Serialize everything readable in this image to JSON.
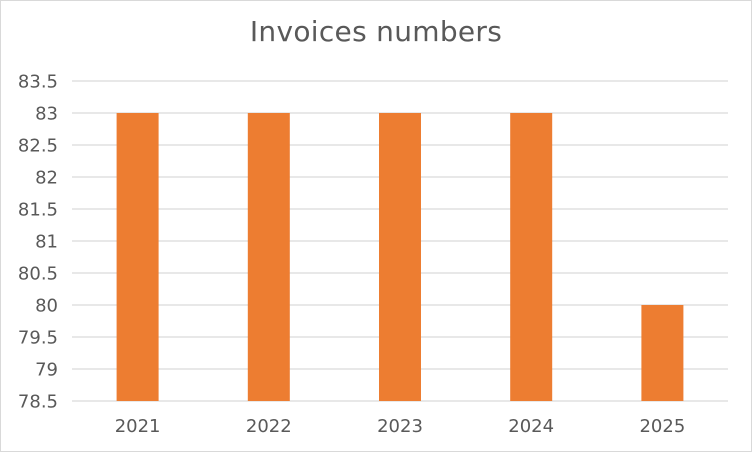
{
  "chart_data": {
    "type": "bar",
    "title": "Invoices numbers",
    "categories": [
      "2021",
      "2022",
      "2023",
      "2024",
      "2025"
    ],
    "values": [
      83,
      83,
      83,
      83,
      80
    ],
    "ylim": [
      78.5,
      83.5
    ],
    "yticks": [
      "78.5",
      "79",
      "79.5",
      "80",
      "80.5",
      "81",
      "81.5",
      "82",
      "82.5",
      "83",
      "83.5"
    ],
    "grid": true,
    "legend": "none",
    "bar_color": "#ED7D31",
    "grid_color": "#D9D9D9",
    "text_color": "#595959"
  }
}
